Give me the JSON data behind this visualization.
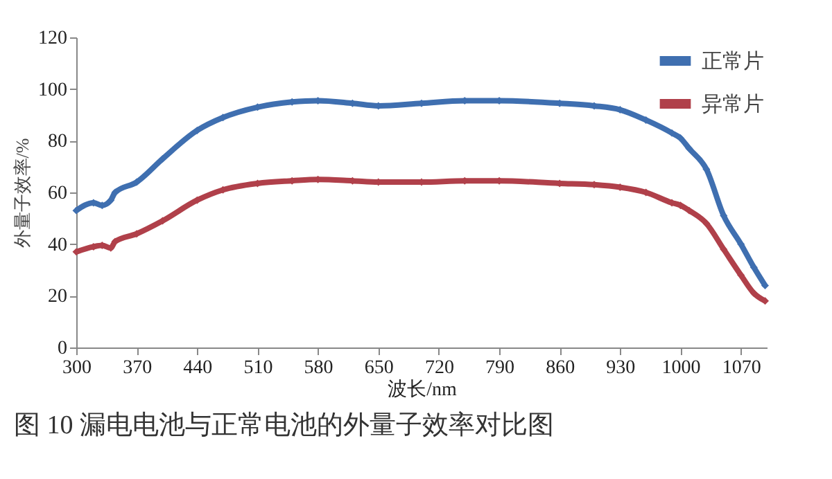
{
  "chart_data": {
    "type": "line",
    "title": "图 10  漏电电池与正常电池的外量子效率对比图",
    "xlabel": "波长/nm",
    "ylabel": "外量子效率/%",
    "x": [
      300,
      320,
      330,
      340,
      345,
      370,
      400,
      440,
      470,
      510,
      550,
      580,
      620,
      650,
      700,
      750,
      790,
      860,
      900,
      930,
      960,
      990,
      1000,
      1010,
      1030,
      1050,
      1070,
      1085,
      1098
    ],
    "series": [
      {
        "name": "正常片",
        "color": "#3f6fb0",
        "values": [
          53,
          56,
          55,
          57,
          60,
          64,
          73,
          84,
          89,
          93,
          95,
          95.5,
          94.5,
          93.5,
          94.5,
          95.5,
          95.5,
          94.5,
          93.5,
          92,
          88,
          83,
          81,
          77,
          69,
          51,
          40,
          31,
          24
        ]
      },
      {
        "name": "异常片",
        "color": "#b0404a",
        "values": [
          37,
          39,
          39.5,
          38.5,
          41,
          44,
          49,
          57,
          61,
          63.5,
          64.5,
          65,
          64.5,
          64,
          64,
          64.5,
          64.5,
          63.5,
          63,
          62,
          60,
          56,
          55,
          53,
          48,
          38,
          28,
          21,
          18
        ]
      }
    ],
    "xlim": [
      300,
      1100
    ],
    "xticks": [
      300,
      370,
      440,
      510,
      580,
      650,
      720,
      790,
      860,
      930,
      1000,
      1070
    ],
    "ylim": [
      0,
      120
    ],
    "yticks": [
      0,
      20,
      40,
      60,
      80,
      100,
      120
    ],
    "grid": false,
    "legend": "top right",
    "marker": "diamond",
    "line_style": "solid"
  }
}
